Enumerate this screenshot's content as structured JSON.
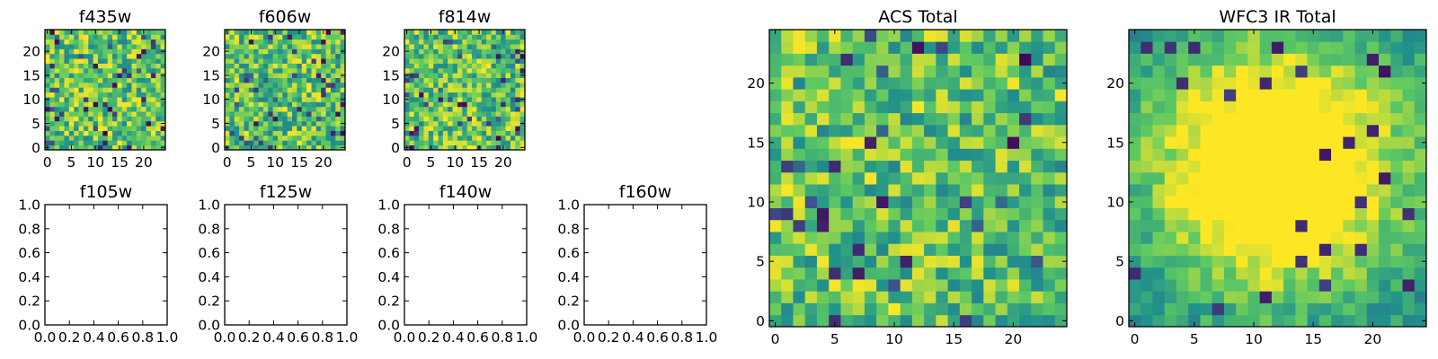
{
  "chart_data": [
    {
      "type": "heatmap",
      "title": "f435w",
      "colormap": "viridis",
      "grid": false,
      "xlim": [
        -0.5,
        24.5
      ],
      "ylim": [
        -0.5,
        24.5
      ],
      "xticks": [
        0,
        5,
        10,
        15,
        20
      ],
      "yticks": [
        0,
        5,
        10,
        15,
        20
      ],
      "size": [
        25,
        25
      ],
      "pattern": "noise",
      "seed": 11,
      "values": []
    },
    {
      "type": "heatmap",
      "title": "f606w",
      "colormap": "viridis",
      "grid": false,
      "xlim": [
        -0.5,
        24.5
      ],
      "ylim": [
        -0.5,
        24.5
      ],
      "xticks": [
        0,
        5,
        10,
        15,
        20
      ],
      "yticks": [
        0,
        5,
        10,
        15,
        20
      ],
      "size": [
        25,
        25
      ],
      "pattern": "noise",
      "seed": 23,
      "values": []
    },
    {
      "type": "heatmap",
      "title": "f814w",
      "colormap": "viridis",
      "grid": false,
      "xlim": [
        -0.5,
        24.5
      ],
      "ylim": [
        -0.5,
        24.5
      ],
      "xticks": [
        0,
        5,
        10,
        15,
        20
      ],
      "yticks": [
        0,
        5,
        10,
        15,
        20
      ],
      "size": [
        25,
        25
      ],
      "pattern": "noise",
      "seed": 37,
      "values": []
    },
    {
      "type": "heatmap",
      "title": "f105w",
      "empty": true,
      "xlim": [
        0,
        1
      ],
      "ylim": [
        0,
        1
      ],
      "xticks": [
        "0.0",
        "0.2",
        "0.4",
        "0.6",
        "0.8",
        "1.0"
      ],
      "yticks": [
        "0.0",
        "0.2",
        "0.4",
        "0.6",
        "0.8",
        "1.0"
      ]
    },
    {
      "type": "heatmap",
      "title": "f125w",
      "empty": true,
      "xlim": [
        0,
        1
      ],
      "ylim": [
        0,
        1
      ],
      "xticks": [
        "0.0",
        "0.2",
        "0.4",
        "0.6",
        "0.8",
        "1.0"
      ],
      "yticks": [
        "0.0",
        "0.2",
        "0.4",
        "0.6",
        "0.8",
        "1.0"
      ]
    },
    {
      "type": "heatmap",
      "title": "f140w",
      "empty": true,
      "xlim": [
        0,
        1
      ],
      "ylim": [
        0,
        1
      ],
      "xticks": [
        "0.0",
        "0.2",
        "0.4",
        "0.6",
        "0.8",
        "1.0"
      ],
      "yticks": [
        "0.0",
        "0.2",
        "0.4",
        "0.6",
        "0.8",
        "1.0"
      ]
    },
    {
      "type": "heatmap",
      "title": "f160w",
      "empty": true,
      "xlim": [
        0,
        1
      ],
      "ylim": [
        0,
        1
      ],
      "xticks": [
        "0.0",
        "0.2",
        "0.4",
        "0.6",
        "0.8",
        "1.0"
      ],
      "yticks": [
        "0.0",
        "0.2",
        "0.4",
        "0.6",
        "0.8",
        "1.0"
      ]
    },
    {
      "type": "heatmap",
      "title": "ACS Total",
      "colormap": "viridis",
      "grid": false,
      "xlim": [
        -0.5,
        24.5
      ],
      "ylim": [
        -0.5,
        24.5
      ],
      "xticks": [
        0,
        5,
        10,
        15,
        20
      ],
      "yticks": [
        0,
        5,
        10,
        15,
        20
      ],
      "size": [
        25,
        25
      ],
      "pattern": "noise",
      "seed": 53,
      "values": []
    },
    {
      "type": "heatmap",
      "title": "WFC3 IR Total",
      "colormap": "viridis",
      "grid": false,
      "xlim": [
        -0.5,
        24.5
      ],
      "ylim": [
        -0.5,
        24.5
      ],
      "xticks": [
        0,
        5,
        10,
        15,
        20
      ],
      "yticks": [
        0,
        5,
        10,
        15,
        20
      ],
      "size": [
        25,
        25
      ],
      "pattern": "centered-blob",
      "seed": 71,
      "values": []
    }
  ],
  "colors": {
    "viridis_stops": [
      "#440154",
      "#3b528b",
      "#21918c",
      "#5ec962",
      "#fde725"
    ],
    "axes": "#000000",
    "background": "#ffffff"
  }
}
